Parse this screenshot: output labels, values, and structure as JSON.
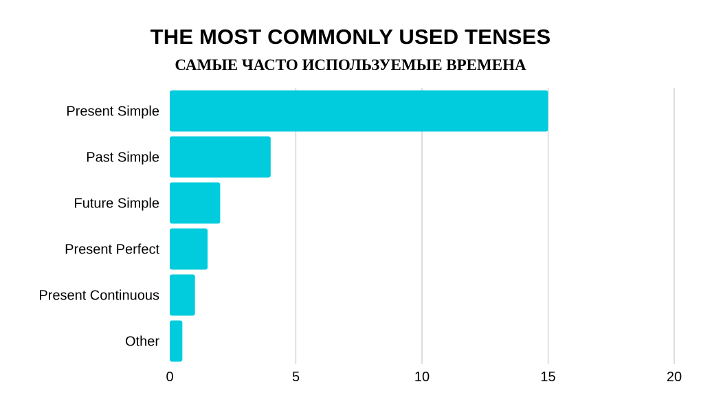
{
  "chart_data": {
    "type": "bar",
    "orientation": "horizontal",
    "title": "THE MOST COMMONLY USED TENSES",
    "subtitle": "САМЫЕ ЧАСТО ИСПОЛЬЗУЕМЫЕ ВРЕМЕНА",
    "categories": [
      "Present Simple",
      "Past Simple",
      "Future Simple",
      "Present Perfect",
      "Present Continuous",
      "Other"
    ],
    "values": [
      15,
      4,
      2,
      1.5,
      1,
      0.5
    ],
    "xlim": [
      0,
      20
    ],
    "xticks": [
      0,
      5,
      10,
      15,
      20
    ],
    "grid": true,
    "bar_color": "#00CCDD",
    "grid_color": "#C8C8C8"
  }
}
